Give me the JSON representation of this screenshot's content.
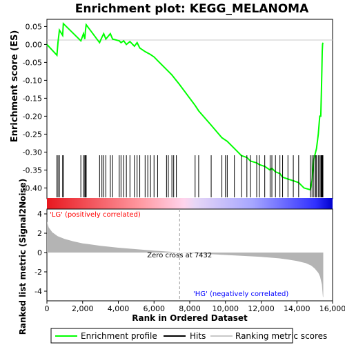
{
  "chart_data": {
    "type": "line",
    "title": "Enrichment plot: KEGG_MELANOMA",
    "xlabel": "Rank in Ordered Dataset",
    "ylabel_top": "Enrichment score (ES)",
    "ylabel_bottom": "Ranked list metric (Signal2Noise)",
    "xlim": [
      0,
      16000
    ],
    "xticks": [
      0,
      2000,
      4000,
      6000,
      8000,
      10000,
      12000,
      14000,
      16000
    ],
    "xtick_labels": [
      "0",
      "2,000",
      "4,000",
      "6,000",
      "8,000",
      "10,000",
      "12,000",
      "14,000",
      "16,000"
    ],
    "es_ylim": [
      -0.43,
      0.07
    ],
    "es_yticks": [
      0.05,
      0.0,
      -0.05,
      -0.1,
      -0.15,
      -0.2,
      -0.25,
      -0.3,
      -0.35,
      -0.4
    ],
    "es_ytick_labels": [
      "0.05",
      "0.00",
      "-0.05",
      "-0.10",
      "-0.15",
      "-0.20",
      "-0.25",
      "-0.30",
      "-0.35",
      "-0.40"
    ],
    "metric_ylim": [
      -5,
      4.5
    ],
    "metric_yticks": [
      4,
      2,
      0,
      -2,
      -4
    ],
    "metric_ytick_labels": [
      "4",
      "2",
      "0",
      "-2",
      "-4"
    ],
    "es_series": {
      "name": "Enrichment profile",
      "color": "#00ff00",
      "x": [
        0,
        560,
        620,
        700,
        880,
        920,
        1900,
        2050,
        2120,
        2160,
        2200,
        2950,
        3080,
        3180,
        3300,
        3550,
        3680,
        4050,
        4150,
        4300,
        4450,
        4650,
        4900,
        5050,
        5200,
        5500,
        5800,
        6000,
        6200,
        6700,
        7000,
        7400,
        8300,
        8500,
        9200,
        9800,
        10100,
        10500,
        10900,
        11200,
        11400,
        11750,
        11900,
        12200,
        12500,
        12600,
        12800,
        13050,
        13200,
        13500,
        13800,
        14100,
        14400,
        14750,
        14850,
        14950,
        15100,
        15200,
        15280,
        15340,
        15370,
        15400,
        15420,
        15440,
        15460
      ],
      "y": [
        0.0,
        -0.03,
        0.005,
        0.04,
        0.025,
        0.058,
        0.01,
        0.03,
        0.015,
        0.04,
        0.055,
        0.005,
        0.02,
        0.03,
        0.015,
        0.03,
        0.015,
        0.01,
        0.005,
        0.01,
        0.0,
        0.008,
        -0.005,
        0.005,
        -0.01,
        -0.02,
        -0.028,
        -0.035,
        -0.045,
        -0.07,
        -0.085,
        -0.11,
        -0.17,
        -0.185,
        -0.225,
        -0.26,
        -0.27,
        -0.29,
        -0.31,
        -0.315,
        -0.325,
        -0.33,
        -0.335,
        -0.34,
        -0.35,
        -0.345,
        -0.355,
        -0.36,
        -0.37,
        -0.375,
        -0.38,
        -0.385,
        -0.4,
        -0.405,
        -0.38,
        -0.32,
        -0.29,
        -0.25,
        -0.2,
        -0.2,
        -0.14,
        -0.07,
        -0.02,
        0.0,
        0.005
      ]
    },
    "hits_label": "Hits",
    "hits": [
      560,
      620,
      700,
      880,
      920,
      1900,
      2050,
      2120,
      2160,
      2200,
      2950,
      3080,
      3180,
      3300,
      3550,
      3680,
      4050,
      4150,
      4300,
      4450,
      4650,
      4900,
      5050,
      5200,
      5500,
      5650,
      5800,
      6000,
      6200,
      6700,
      6800,
      7000,
      7100,
      7250,
      8300,
      8500,
      9200,
      9800,
      10000,
      10100,
      10500,
      10900,
      11200,
      11400,
      11750,
      11900,
      12200,
      12500,
      12600,
      12800,
      13050,
      13200,
      13500,
      13800,
      14100,
      14750,
      14850,
      14950,
      15050,
      15100,
      15200,
      15280,
      15340,
      15370,
      15400,
      15420,
      15440,
      15460
    ],
    "metric_label": "Ranking metric scores",
    "metric_series": {
      "x": [
        0,
        100,
        300,
        600,
        1000,
        1500,
        2000,
        3000,
        4000,
        5000,
        6000,
        7000,
        7432,
        8000,
        9000,
        10000,
        11000,
        12000,
        13000,
        13500,
        14000,
        14500,
        14800,
        15000,
        15200,
        15300,
        15400,
        15460,
        15480
      ],
      "y": [
        3.2,
        2.6,
        2.1,
        1.7,
        1.4,
        1.15,
        0.95,
        0.7,
        0.5,
        0.35,
        0.2,
        0.07,
        0.0,
        -0.05,
        -0.15,
        -0.25,
        -0.35,
        -0.45,
        -0.6,
        -0.72,
        -0.88,
        -1.1,
        -1.35,
        -1.65,
        -2.1,
        -2.5,
        -3.3,
        -4.6,
        -4.6
      ]
    },
    "zero_cross_label": "Zero cross at 7432",
    "zero_cross_x": 7432,
    "pos_label": "'LG' (positively correlated)",
    "neg_label": "'HG' (negatively correlated)",
    "pos_color": "#ff0000",
    "neg_color": "#0000ff",
    "legend": {
      "placement": "bottom",
      "entries": [
        "Enrichment profile",
        "Hits",
        "Ranking metric scores"
      ]
    }
  }
}
